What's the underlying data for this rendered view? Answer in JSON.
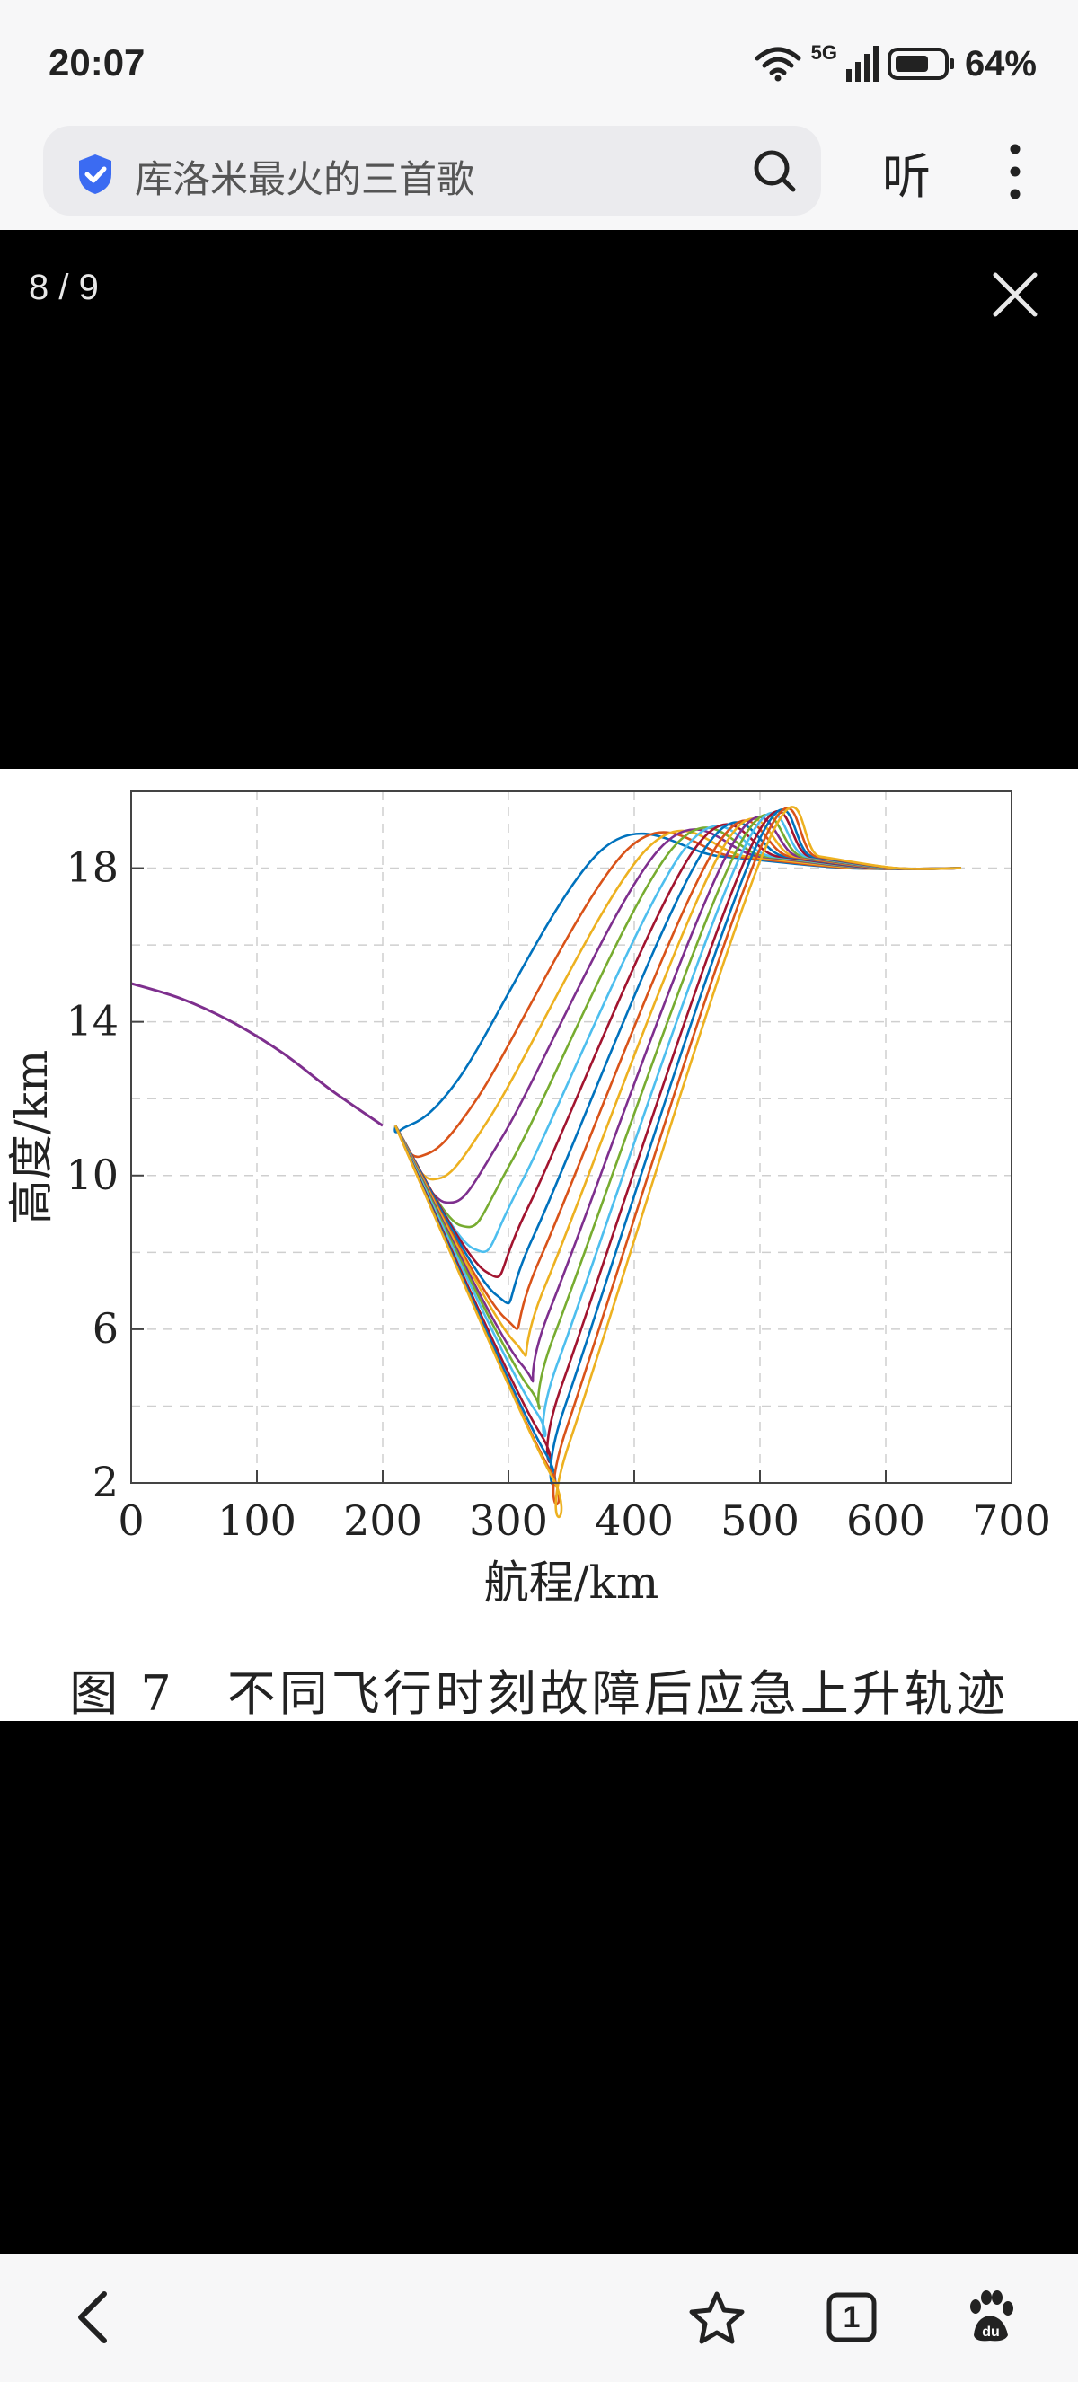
{
  "status_bar": {
    "time": "20:07",
    "network": "5G",
    "battery": "64%"
  },
  "search": {
    "query": "库洛米最火的三首歌",
    "listen_label": "听"
  },
  "viewer": {
    "counter": "8 / 9"
  },
  "chart_data": {
    "type": "line",
    "xlabel": "航程/km",
    "ylabel": "高度/km",
    "xlim": [
      0,
      700
    ],
    "ylim": [
      2,
      20
    ],
    "xticks": [
      0,
      100,
      200,
      300,
      400,
      500,
      600,
      700
    ],
    "yticks": [
      2,
      6,
      10,
      14,
      18
    ],
    "grid": true,
    "colors": [
      "#0072bd",
      "#d95319",
      "#edb120",
      "#7e2f8e",
      "#77ac30",
      "#4dbeee",
      "#a2142f"
    ],
    "common_descent": {
      "x": [
        0,
        40,
        80,
        120,
        160,
        200
      ],
      "y": [
        15.0,
        14.6,
        14.0,
        13.2,
        12.2,
        11.3
      ]
    },
    "series": [
      {
        "x": [
          0,
          210,
          215,
          260,
          375,
          470,
          570,
          660
        ],
        "y": [
          15.0,
          11.3,
          11.2,
          12.5,
          18.5,
          18.3,
          18.0,
          18.0
        ]
      },
      {
        "x": [
          0,
          210,
          230,
          275,
          395,
          480,
          575,
          660
        ],
        "y": [
          15.0,
          11.3,
          10.5,
          12.0,
          18.5,
          18.3,
          18.0,
          18.0
        ]
      },
      {
        "x": [
          0,
          210,
          240,
          285,
          410,
          490,
          580,
          660
        ],
        "y": [
          15.0,
          11.3,
          9.9,
          11.5,
          18.5,
          18.3,
          18.0,
          18.0
        ]
      },
      {
        "x": [
          0,
          210,
          250,
          295,
          420,
          500,
          585,
          660
        ],
        "y": [
          15.0,
          11.3,
          9.3,
          11.0,
          18.5,
          18.3,
          18.0,
          18.0
        ]
      },
      {
        "x": [
          0,
          210,
          262,
          303,
          430,
          505,
          588,
          660
        ],
        "y": [
          15.0,
          11.3,
          8.7,
          10.4,
          18.5,
          18.3,
          18.0,
          18.0
        ]
      },
      {
        "x": [
          0,
          210,
          272,
          310,
          440,
          510,
          590,
          660
        ],
        "y": [
          15.0,
          11.3,
          8.1,
          9.8,
          18.5,
          18.3,
          18.0,
          18.0
        ]
      },
      {
        "x": [
          0,
          210,
          282,
          316,
          448,
          515,
          592,
          660
        ],
        "y": [
          15.0,
          11.3,
          7.5,
          9.2,
          18.5,
          18.3,
          18.0,
          18.0
        ]
      },
      {
        "x": [
          0,
          210,
          290,
          321,
          456,
          520,
          594,
          660
        ],
        "y": [
          15.0,
          11.3,
          6.9,
          8.5,
          18.5,
          18.3,
          18.0,
          18.0
        ]
      },
      {
        "x": [
          0,
          210,
          297,
          326,
          464,
          524,
          596,
          660
        ],
        "y": [
          15.0,
          11.3,
          6.3,
          7.9,
          18.5,
          18.3,
          18.0,
          18.0
        ]
      },
      {
        "x": [
          0,
          210,
          304,
          330,
          470,
          528,
          598,
          660
        ],
        "y": [
          15.0,
          11.3,
          5.7,
          7.2,
          18.5,
          18.3,
          18.0,
          18.0
        ]
      },
      {
        "x": [
          0,
          210,
          310,
          334,
          476,
          531,
          600,
          660
        ],
        "y": [
          15.0,
          11.3,
          5.1,
          6.6,
          18.5,
          18.3,
          18.0,
          18.0
        ]
      },
      {
        "x": [
          0,
          210,
          316,
          337,
          482,
          534,
          602,
          660
        ],
        "y": [
          15.0,
          11.3,
          4.5,
          5.9,
          18.5,
          18.3,
          18.0,
          18.0
        ]
      },
      {
        "x": [
          0,
          210,
          321,
          340,
          487,
          537,
          604,
          660
        ],
        "y": [
          15.0,
          11.3,
          3.9,
          5.2,
          18.5,
          18.3,
          18.0,
          18.0
        ]
      },
      {
        "x": [
          0,
          210,
          325,
          343,
          492,
          540,
          606,
          660
        ],
        "y": [
          15.0,
          11.3,
          3.3,
          4.6,
          18.5,
          18.3,
          18.0,
          18.0
        ]
      },
      {
        "x": [
          0,
          210,
          329,
          345,
          496,
          542,
          607,
          660
        ],
        "y": [
          15.0,
          11.3,
          2.8,
          4.0,
          18.5,
          18.3,
          18.0,
          18.0
        ]
      },
      {
        "x": [
          0,
          210,
          332,
          347,
          500,
          545,
          608,
          660
        ],
        "y": [
          15.0,
          11.3,
          2.4,
          3.5,
          18.5,
          18.3,
          18.0,
          18.0
        ]
      },
      {
        "x": [
          0,
          210,
          334,
          349,
          504,
          548,
          609,
          660
        ],
        "y": [
          15.0,
          11.3,
          2.2,
          3.1,
          18.5,
          18.3,
          18.0,
          18.0
        ]
      }
    ],
    "caption": "图 7　不同飞行时刻故障后应急上升轨迹"
  }
}
